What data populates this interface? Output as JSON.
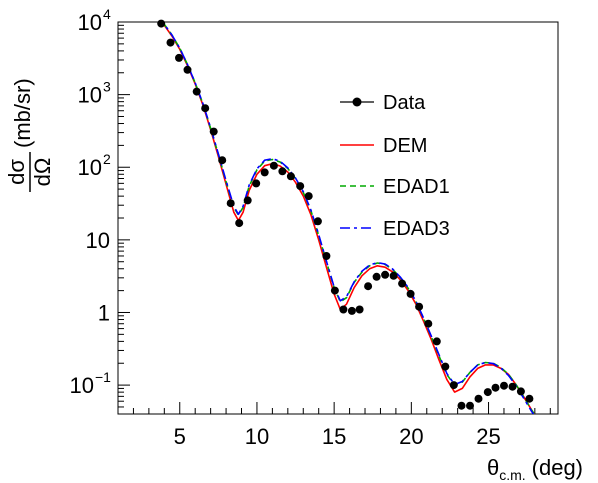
{
  "chart_data": {
    "type": "scatter",
    "x_axis": {
      "range": [
        1,
        29.5
      ],
      "ticks": [
        5,
        10,
        15,
        20,
        25
      ],
      "tick_labels": [
        "5",
        "10",
        "15",
        "20",
        "25"
      ],
      "title_symbol": "θ",
      "title_subscript": "c.m.",
      "title_unit": "(deg)"
    },
    "y_axis": {
      "scale": "log",
      "range": [
        0.04,
        10000
      ],
      "major_ticks": [
        {
          "value": 0.1,
          "base": "10",
          "exp": "−1"
        },
        {
          "value": 1,
          "text": "1"
        },
        {
          "value": 10,
          "text": "10"
        },
        {
          "value": 100,
          "base": "10",
          "exp": "2"
        },
        {
          "value": 1000,
          "base": "10",
          "exp": "3"
        },
        {
          "value": 10000,
          "base": "10",
          "exp": "4"
        }
      ],
      "title_numerator": "dσ",
      "title_denominator": "dΩ",
      "title_unit": "(mb/sr)"
    },
    "legend": {
      "placement": "center-right",
      "entries": [
        {
          "label": "Data",
          "style": "marker-line",
          "color": "#000000"
        },
        {
          "label": "DEM",
          "style": "solid",
          "color": "#ff0000"
        },
        {
          "label": "EDAD1",
          "style": "dashed",
          "color": "#00aa00"
        },
        {
          "label": "EDAD3",
          "style": "dashdot",
          "color": "#0000ff"
        }
      ]
    },
    "series": [
      {
        "name": "Data",
        "kind": "points",
        "color": "#000000",
        "points": [
          [
            3.8,
            9500
          ],
          [
            4.4,
            5200
          ],
          [
            4.95,
            3200
          ],
          [
            5.5,
            2200
          ],
          [
            6.1,
            1100
          ],
          [
            6.65,
            650
          ],
          [
            7.2,
            310
          ],
          [
            7.75,
            125
          ],
          [
            8.3,
            32
          ],
          [
            8.85,
            17
          ],
          [
            9.4,
            35
          ],
          [
            9.95,
            60
          ],
          [
            10.5,
            85
          ],
          [
            11.1,
            105
          ],
          [
            11.65,
            88
          ],
          [
            12.2,
            75
          ],
          [
            12.8,
            55
          ],
          [
            13.35,
            40
          ],
          [
            13.95,
            18
          ],
          [
            14.5,
            6
          ],
          [
            15.05,
            2.0
          ],
          [
            15.6,
            1.1
          ],
          [
            16.15,
            1.05
          ],
          [
            16.65,
            1.1
          ],
          [
            17.2,
            2.3
          ],
          [
            17.75,
            3.1
          ],
          [
            18.3,
            3.3
          ],
          [
            18.85,
            3.2
          ],
          [
            19.4,
            2.5
          ],
          [
            19.95,
            1.8
          ],
          [
            20.5,
            1.2
          ],
          [
            21.1,
            0.7
          ],
          [
            21.65,
            0.4
          ],
          [
            22.2,
            0.18
          ],
          [
            22.75,
            0.1
          ],
          [
            23.25,
            0.052
          ],
          [
            23.8,
            0.052
          ],
          [
            24.35,
            0.065
          ],
          [
            24.95,
            0.08
          ],
          [
            25.45,
            0.092
          ],
          [
            26.0,
            0.098
          ],
          [
            26.55,
            0.095
          ],
          [
            27.1,
            0.082
          ],
          [
            27.65,
            0.065
          ]
        ]
      },
      {
        "name": "DEM",
        "kind": "line",
        "color": "#ff0000",
        "dash": "",
        "points": [
          [
            3.5,
            11500
          ],
          [
            4,
            9000
          ],
          [
            4.5,
            6400
          ],
          [
            5,
            4200
          ],
          [
            5.5,
            2500
          ],
          [
            6,
            1400
          ],
          [
            6.5,
            720
          ],
          [
            7,
            330
          ],
          [
            7.5,
            140
          ],
          [
            8,
            58
          ],
          [
            8.5,
            24
          ],
          [
            8.8,
            18.5
          ],
          [
            9.1,
            24
          ],
          [
            9.5,
            48
          ],
          [
            10,
            80
          ],
          [
            10.5,
            105
          ],
          [
            11,
            112
          ],
          [
            11.5,
            104
          ],
          [
            12,
            86
          ],
          [
            12.5,
            62
          ],
          [
            13,
            40
          ],
          [
            13.5,
            22
          ],
          [
            14,
            10
          ],
          [
            14.5,
            4.2
          ],
          [
            15,
            1.8
          ],
          [
            15.4,
            1.1
          ],
          [
            15.8,
            1.3
          ],
          [
            16.3,
            2.2
          ],
          [
            16.8,
            3.2
          ],
          [
            17.3,
            4
          ],
          [
            17.8,
            4.4
          ],
          [
            18.3,
            4.2
          ],
          [
            18.8,
            3.6
          ],
          [
            19.3,
            2.8
          ],
          [
            19.8,
            2
          ],
          [
            20.3,
            1.3
          ],
          [
            20.8,
            0.75
          ],
          [
            21.3,
            0.42
          ],
          [
            21.8,
            0.22
          ],
          [
            22.3,
            0.12
          ],
          [
            22.8,
            0.08
          ],
          [
            23.3,
            0.09
          ],
          [
            23.8,
            0.13
          ],
          [
            24.3,
            0.17
          ],
          [
            24.8,
            0.19
          ],
          [
            25.3,
            0.19
          ],
          [
            25.8,
            0.17
          ],
          [
            26.3,
            0.14
          ],
          [
            26.8,
            0.1
          ],
          [
            27.3,
            0.068
          ],
          [
            27.8,
            0.045
          ],
          [
            28.1,
            0.036
          ]
        ]
      },
      {
        "name": "EDAD1",
        "kind": "line",
        "color": "#00aa00",
        "dash": "6,4",
        "points": [
          [
            3.5,
            11800
          ],
          [
            4,
            9300
          ],
          [
            4.5,
            6600
          ],
          [
            5,
            4350
          ],
          [
            5.5,
            2600
          ],
          [
            6,
            1450
          ],
          [
            6.5,
            750
          ],
          [
            7,
            345
          ],
          [
            7.5,
            150
          ],
          [
            8,
            63
          ],
          [
            8.5,
            28
          ],
          [
            8.8,
            22
          ],
          [
            9.1,
            28
          ],
          [
            9.5,
            55
          ],
          [
            10,
            92
          ],
          [
            10.5,
            122
          ],
          [
            11,
            128
          ],
          [
            11.5,
            118
          ],
          [
            12,
            96
          ],
          [
            12.5,
            70
          ],
          [
            13,
            45
          ],
          [
            13.5,
            25
          ],
          [
            14,
            11.5
          ],
          [
            14.5,
            5
          ],
          [
            15,
            2.2
          ],
          [
            15.4,
            1.4
          ],
          [
            15.8,
            1.6
          ],
          [
            16.3,
            2.6
          ],
          [
            16.8,
            3.6
          ],
          [
            17.3,
            4.4
          ],
          [
            17.8,
            4.8
          ],
          [
            18.3,
            4.6
          ],
          [
            18.8,
            3.9
          ],
          [
            19.3,
            3
          ],
          [
            19.8,
            2.15
          ],
          [
            20.3,
            1.4
          ],
          [
            20.8,
            0.82
          ],
          [
            21.3,
            0.46
          ],
          [
            21.8,
            0.25
          ],
          [
            22.3,
            0.14
          ],
          [
            22.8,
            0.1
          ],
          [
            23.3,
            0.11
          ],
          [
            23.8,
            0.15
          ],
          [
            24.3,
            0.19
          ],
          [
            24.8,
            0.205
          ],
          [
            25.3,
            0.2
          ],
          [
            25.8,
            0.175
          ],
          [
            26.3,
            0.14
          ],
          [
            26.8,
            0.1
          ],
          [
            27.3,
            0.068
          ],
          [
            27.8,
            0.045
          ],
          [
            28.1,
            0.036
          ]
        ]
      },
      {
        "name": "EDAD3",
        "kind": "line",
        "color": "#0000ff",
        "dash": "10,4,3,4",
        "points": [
          [
            3.5,
            11800
          ],
          [
            4,
            9300
          ],
          [
            4.5,
            6600
          ],
          [
            5,
            4350
          ],
          [
            5.5,
            2600
          ],
          [
            6,
            1450
          ],
          [
            6.5,
            755
          ],
          [
            7,
            350
          ],
          [
            7.5,
            152
          ],
          [
            8,
            65
          ],
          [
            8.5,
            29
          ],
          [
            8.8,
            22.5
          ],
          [
            9.1,
            29
          ],
          [
            9.5,
            57
          ],
          [
            10,
            95
          ],
          [
            10.5,
            125
          ],
          [
            11,
            131
          ],
          [
            11.5,
            121
          ],
          [
            12,
            98
          ],
          [
            12.5,
            71
          ],
          [
            13,
            46
          ],
          [
            13.5,
            25.5
          ],
          [
            14,
            11.8
          ],
          [
            14.5,
            5.1
          ],
          [
            15,
            2.25
          ],
          [
            15.4,
            1.45
          ],
          [
            15.8,
            1.65
          ],
          [
            16.3,
            2.65
          ],
          [
            16.8,
            3.7
          ],
          [
            17.3,
            4.5
          ],
          [
            17.8,
            4.85
          ],
          [
            18.3,
            4.65
          ],
          [
            18.8,
            3.95
          ],
          [
            19.3,
            3.05
          ],
          [
            19.8,
            2.2
          ],
          [
            20.3,
            1.42
          ],
          [
            20.8,
            0.83
          ],
          [
            21.3,
            0.47
          ],
          [
            21.8,
            0.26
          ],
          [
            22.3,
            0.145
          ],
          [
            22.8,
            0.102
          ],
          [
            23.3,
            0.112
          ],
          [
            23.8,
            0.15
          ],
          [
            24.3,
            0.19
          ],
          [
            24.8,
            0.205
          ],
          [
            25.3,
            0.198
          ],
          [
            25.8,
            0.172
          ],
          [
            26.3,
            0.135
          ],
          [
            26.8,
            0.097
          ],
          [
            27.3,
            0.065
          ],
          [
            27.8,
            0.043
          ],
          [
            28.1,
            0.035
          ]
        ]
      }
    ]
  }
}
